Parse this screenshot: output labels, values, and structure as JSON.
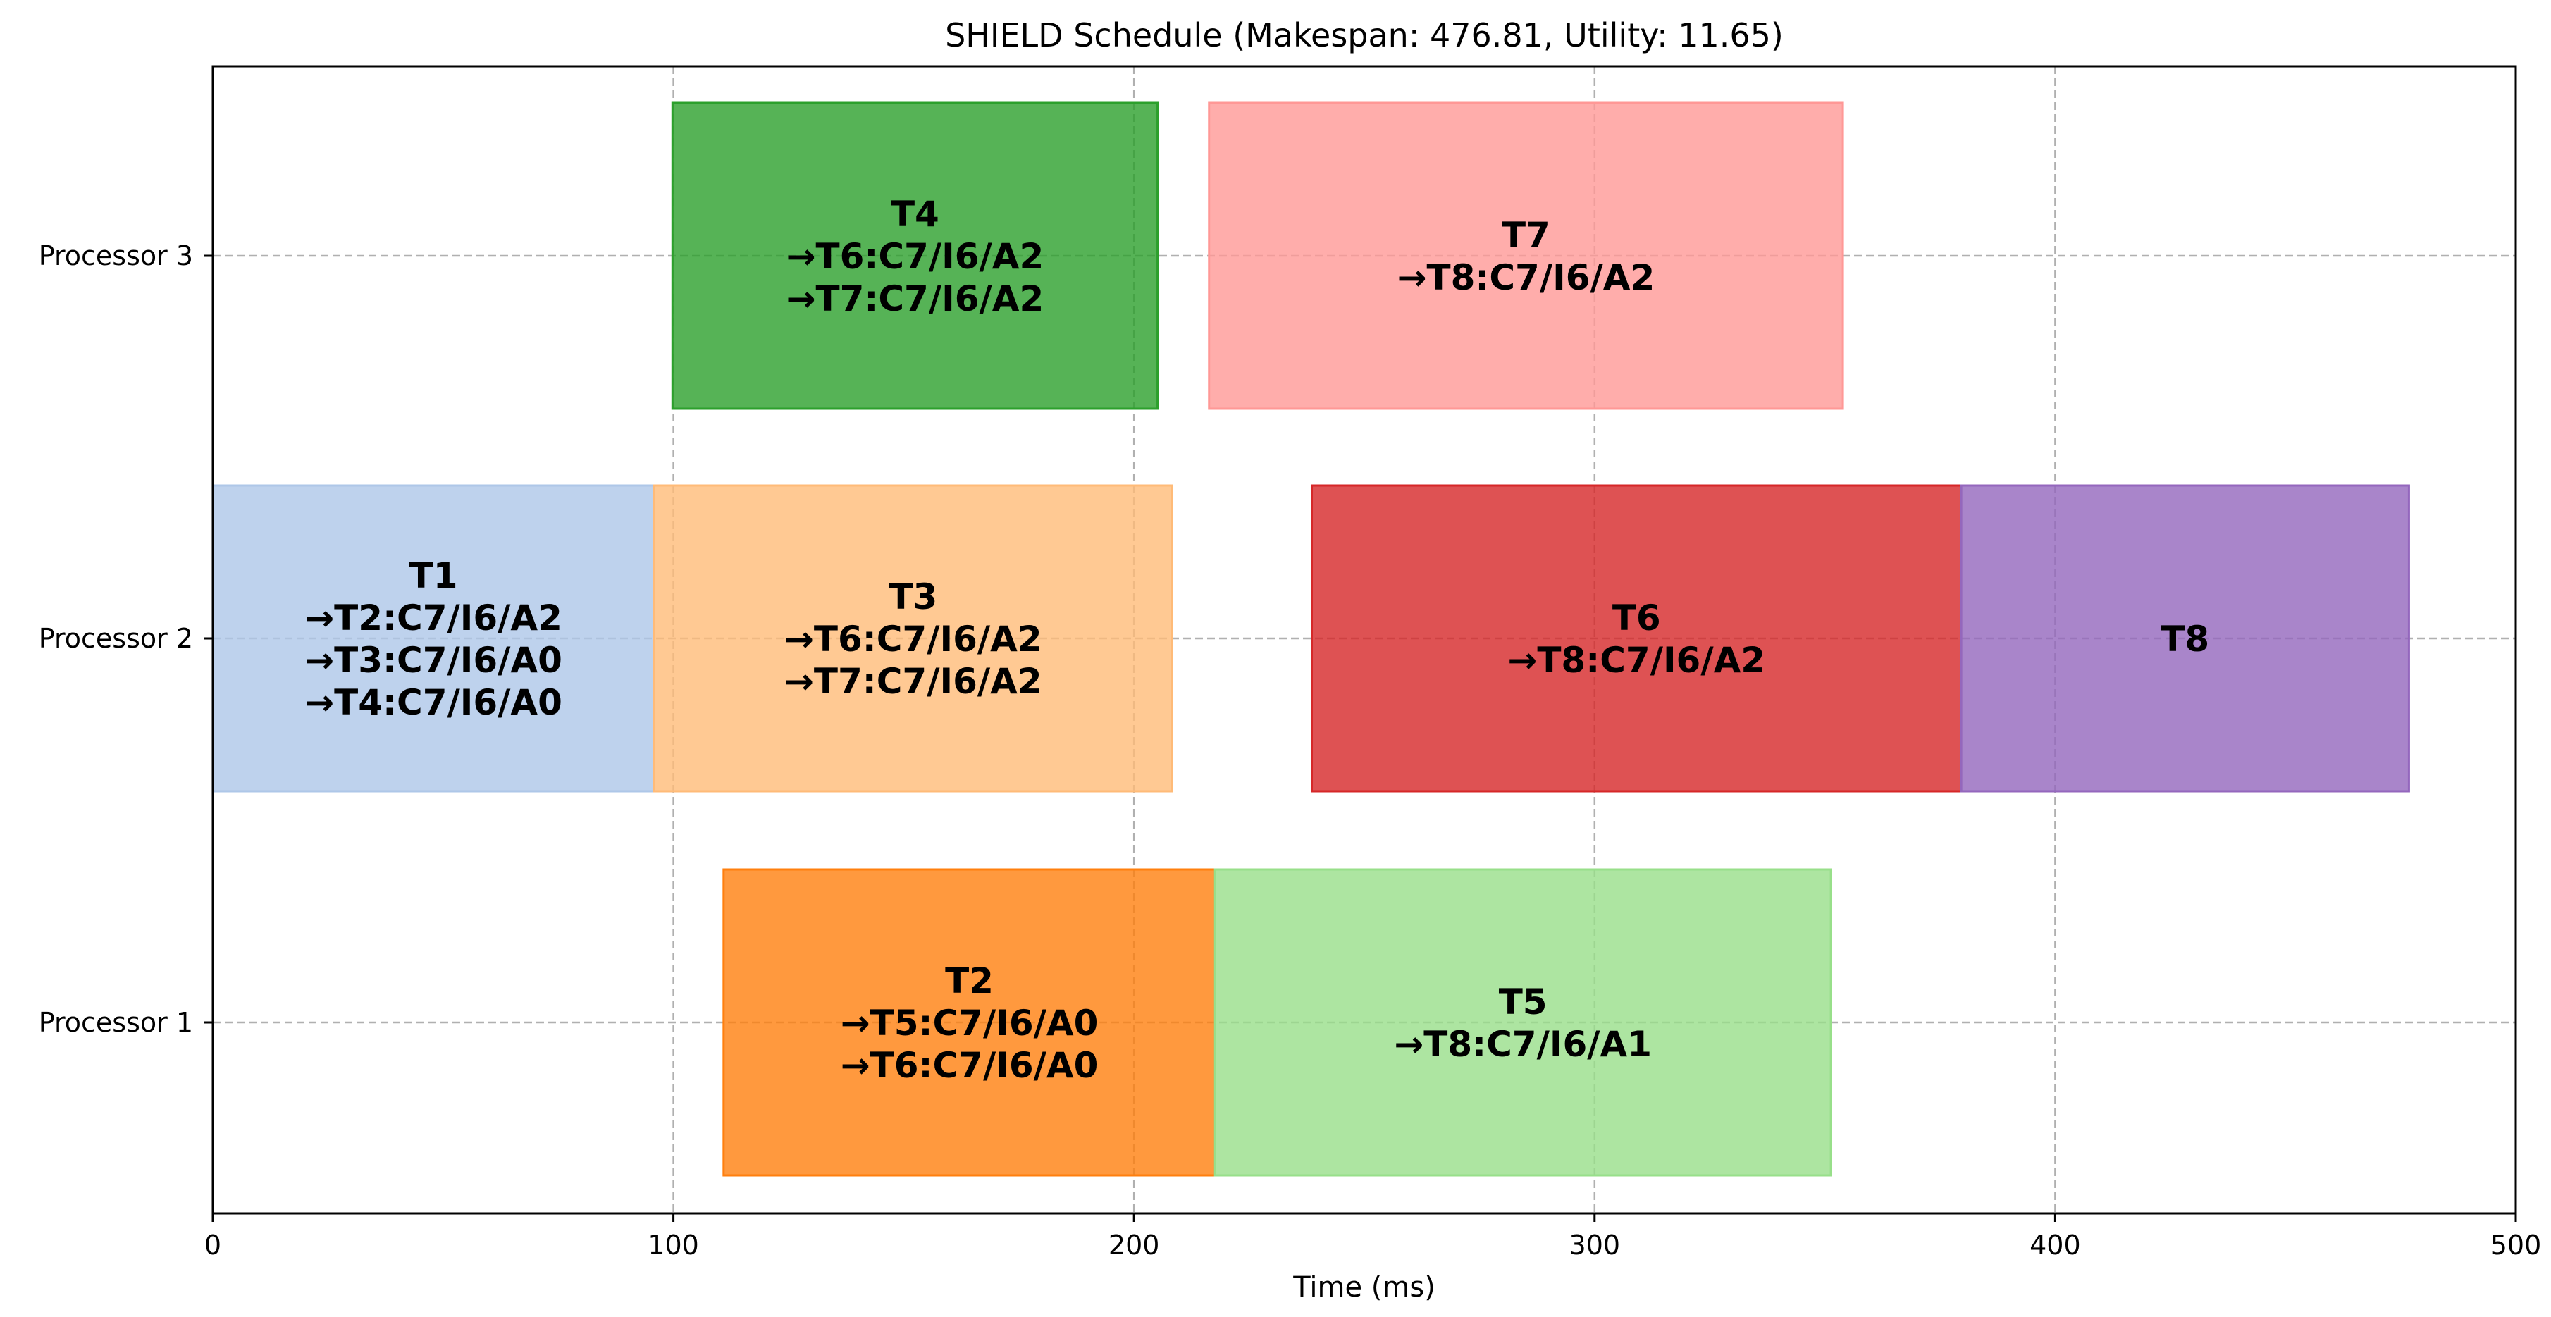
{
  "chart_data": {
    "type": "gantt",
    "title": "SHIELD Schedule (Makespan: 476.81, Utility: 11.65)",
    "xlabel": "Time (ms)",
    "ylabel": "",
    "xlim": [
      0,
      500
    ],
    "x_ticks": [
      "0",
      "100",
      "200",
      "300",
      "400",
      "500"
    ],
    "y_categories": [
      "Processor 1",
      "Processor 2",
      "Processor 3"
    ],
    "grid": true,
    "tasks": [
      {
        "name": "T1",
        "processor": "Processor 2",
        "start": 0,
        "end": 95.8,
        "color": "#aec7e8",
        "labels": [
          "T1",
          "→T2:C7/I6/A2",
          "→T3:C7/I6/A0",
          "→T4:C7/I6/A0"
        ]
      },
      {
        "name": "T3",
        "processor": "Processor 2",
        "start": 95.8,
        "end": 208.3,
        "color": "#ffbb78",
        "labels": [
          "T3",
          "→T6:C7/I6/A2",
          "→T7:C7/I6/A2"
        ]
      },
      {
        "name": "T6",
        "processor": "Processor 2",
        "start": 238.6,
        "end": 379.6,
        "color": "#d62728",
        "labels": [
          "T6",
          "→T8:C7/I6/A2"
        ]
      },
      {
        "name": "T8",
        "processor": "Processor 2",
        "start": 379.6,
        "end": 476.81,
        "color": "#9467bd",
        "labels": [
          "T8"
        ]
      },
      {
        "name": "T4",
        "processor": "Processor 3",
        "start": 99.8,
        "end": 205.1,
        "color": "#2ca02c",
        "labels": [
          "T4",
          "→T6:C7/I6/A2",
          "→T7:C7/I6/A2"
        ]
      },
      {
        "name": "T7",
        "processor": "Processor 3",
        "start": 216.3,
        "end": 353.9,
        "color": "#ff9896",
        "labels": [
          "T7",
          "→T8:C7/I6/A2"
        ]
      },
      {
        "name": "T2",
        "processor": "Processor 1",
        "start": 110.9,
        "end": 217.6,
        "color": "#ff7f0e",
        "labels": [
          "T2",
          "→T5:C7/I6/A0",
          "→T6:C7/I6/A0"
        ]
      },
      {
        "name": "T5",
        "processor": "Processor 1",
        "start": 217.6,
        "end": 351.3,
        "color": "#98df8a",
        "labels": [
          "T5",
          "→T8:C7/I6/A1"
        ]
      }
    ]
  }
}
